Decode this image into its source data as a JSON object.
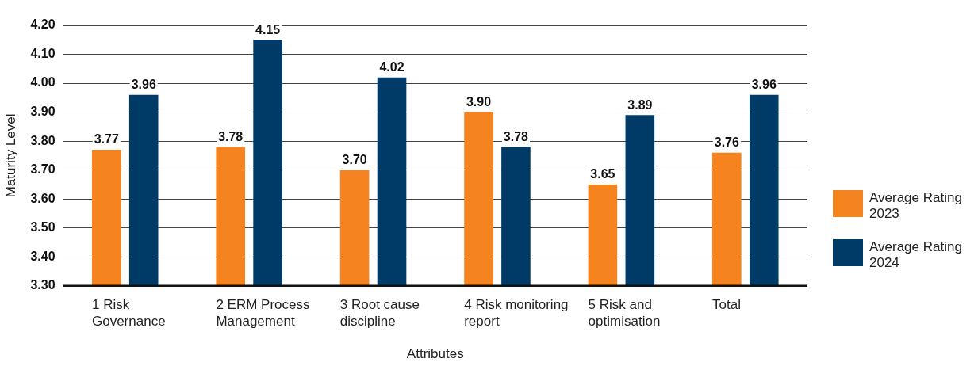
{
  "chart_data": {
    "type": "bar",
    "xlabel": "Attributes",
    "ylabel": "Maturity Level",
    "categories": [
      "1 Risk Governance",
      "2 ERM Process Management",
      "3 Root cause discipline",
      "4 Risk monitoring report",
      "5 Risk and optimisation",
      "Total"
    ],
    "series": [
      {
        "name": "Average Rating 2023",
        "color": "#f58420",
        "values": [
          3.77,
          3.78,
          3.7,
          3.9,
          3.65,
          3.76
        ],
        "value_labels": [
          "3.77",
          "3.78",
          "3.70",
          "3.90",
          "3.65",
          "3.76"
        ]
      },
      {
        "name": "Average Rating 2024",
        "color": "#003a66",
        "values": [
          3.96,
          4.15,
          4.02,
          3.78,
          3.89,
          3.96
        ],
        "value_labels": [
          "3.96",
          "4.15",
          "4.02",
          "3.78",
          "3.89",
          "3.96"
        ]
      }
    ],
    "ylim": [
      3.3,
      4.2
    ],
    "yticks": [
      {
        "value": 3.3,
        "label": "3.30"
      },
      {
        "value": 3.4,
        "label": "3.40"
      },
      {
        "value": 3.5,
        "label": "3.50"
      },
      {
        "value": 3.6,
        "label": "3.60"
      },
      {
        "value": 3.7,
        "label": "3.70"
      },
      {
        "value": 3.8,
        "label": "3.80"
      },
      {
        "value": 3.9,
        "label": "3.90"
      },
      {
        "value": 4.0,
        "label": "4.00"
      },
      {
        "value": 4.1,
        "label": "4.10"
      },
      {
        "value": 4.2,
        "label": "4.20"
      }
    ],
    "grid": "y",
    "legend": "right"
  }
}
